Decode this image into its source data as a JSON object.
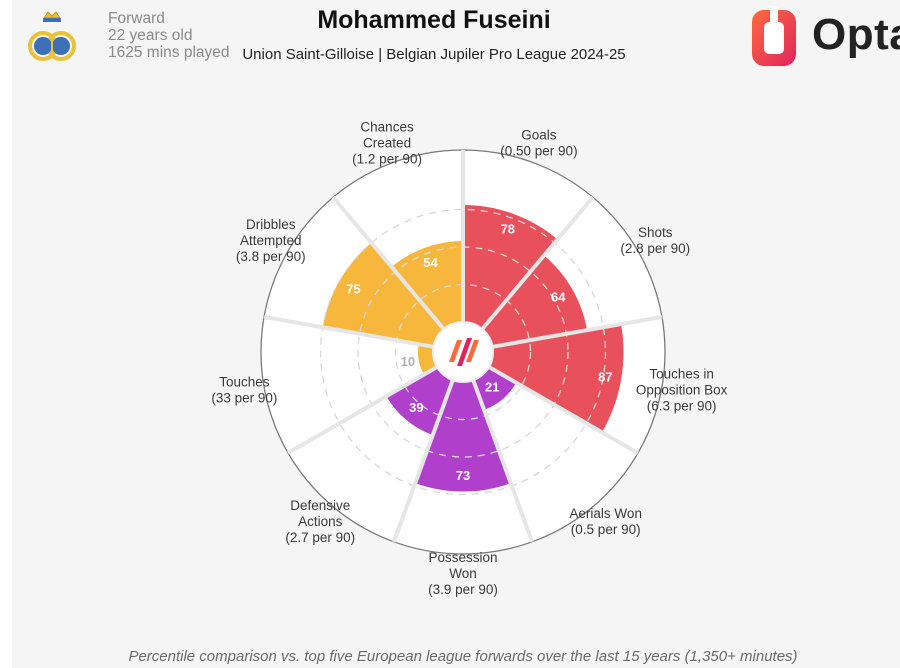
{
  "header": {
    "player_name": "Mohammed Fuseini",
    "position": "Forward",
    "age": "22 years old",
    "minutes": "1625 mins played",
    "club_league": "Union Saint-Gilloise | Belgian Jupiler Pro League 2024-25",
    "brand": "Opta"
  },
  "footnote": "Percentile comparison vs. top five European league forwards over the last 15 years (1,350+ minutes)",
  "colors": {
    "attacking": "#e8505b",
    "possession": "#f6b73c",
    "defending": "#b03fcb",
    "background": "#f5f5f5",
    "grid": "#d0d0d0"
  },
  "chart_data": {
    "type": "polar-bar",
    "scale_max": 100,
    "segments": [
      {
        "name": "Goals",
        "per90": "(0.50 per 90)",
        "percentile": 78,
        "group": "attacking"
      },
      {
        "name": "Shots",
        "per90": "(2.8 per 90)",
        "percentile": 64,
        "group": "attacking"
      },
      {
        "name": "Touches in Opposition Box",
        "per90": "(6.3 per 90)",
        "percentile": 87,
        "group": "attacking"
      },
      {
        "name": "Aerials Won",
        "per90": "(0.5 per 90)",
        "percentile": 21,
        "group": "defending"
      },
      {
        "name": "Possession Won",
        "per90": "(3.9 per 90)",
        "percentile": 73,
        "group": "defending"
      },
      {
        "name": "Defensive Actions",
        "per90": "(2.7 per 90)",
        "percentile": 39,
        "group": "defending"
      },
      {
        "name": "Touches",
        "per90": "(33 per 90)",
        "percentile": 10,
        "group": "possession"
      },
      {
        "name": "Dribbles Attempted",
        "per90": "(3.8 per 90)",
        "percentile": 75,
        "group": "possession"
      },
      {
        "name": "Chances Created",
        "per90": "(1.2 per 90)",
        "percentile": 54,
        "group": "possession"
      }
    ]
  }
}
